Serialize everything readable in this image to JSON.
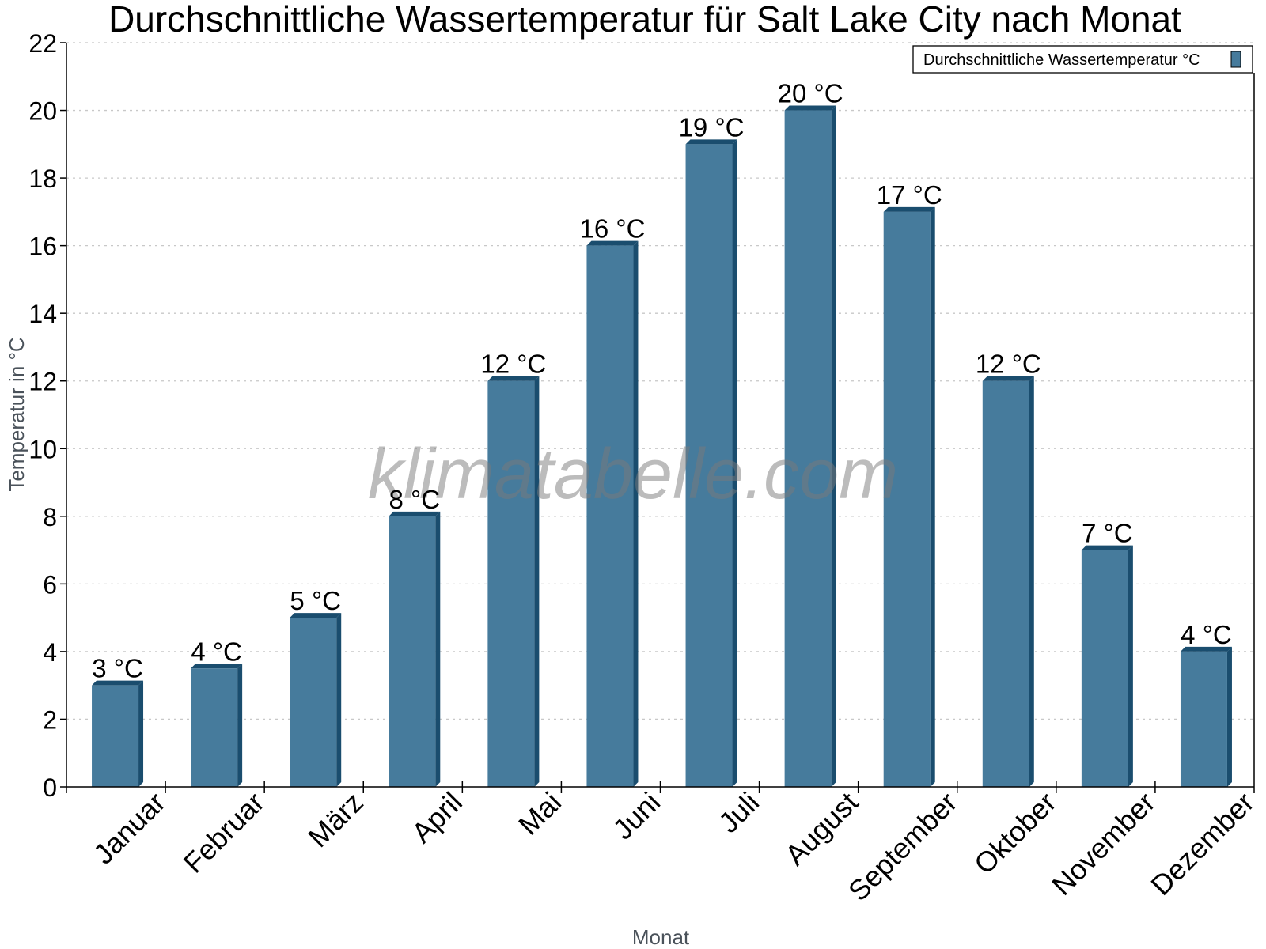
{
  "chart_data": {
    "type": "bar",
    "title": "Durchschnittliche Wassertemperatur für Salt Lake City nach Monat",
    "xlabel": "Monat",
    "ylabel": "Temperatur in °C",
    "categories": [
      "Januar",
      "Februar",
      "März",
      "April",
      "Mai",
      "Juni",
      "Juli",
      "August",
      "September",
      "Oktober",
      "November",
      "Dezember"
    ],
    "series": [
      {
        "name": "Durchschnittliche Wassertemperatur °C",
        "values": [
          3,
          3.5,
          5,
          8,
          12,
          16,
          19,
          20,
          17,
          12,
          7,
          4
        ],
        "labels": [
          "3 °C",
          "4 °C",
          "5 °C",
          "8 °C",
          "12 °C",
          "16 °C",
          "19 °C",
          "20 °C",
          "17 °C",
          "12 °C",
          "7 °C",
          "4 °C"
        ],
        "color": "#467b9c",
        "side_color": "#1a4d6e"
      }
    ],
    "ylim": [
      0,
      22
    ],
    "yticks": [
      0,
      2,
      4,
      6,
      8,
      10,
      12,
      14,
      16,
      18,
      20,
      22
    ],
    "grid": true,
    "legend_position": "top-right",
    "watermark": "klimatabelle.com"
  }
}
